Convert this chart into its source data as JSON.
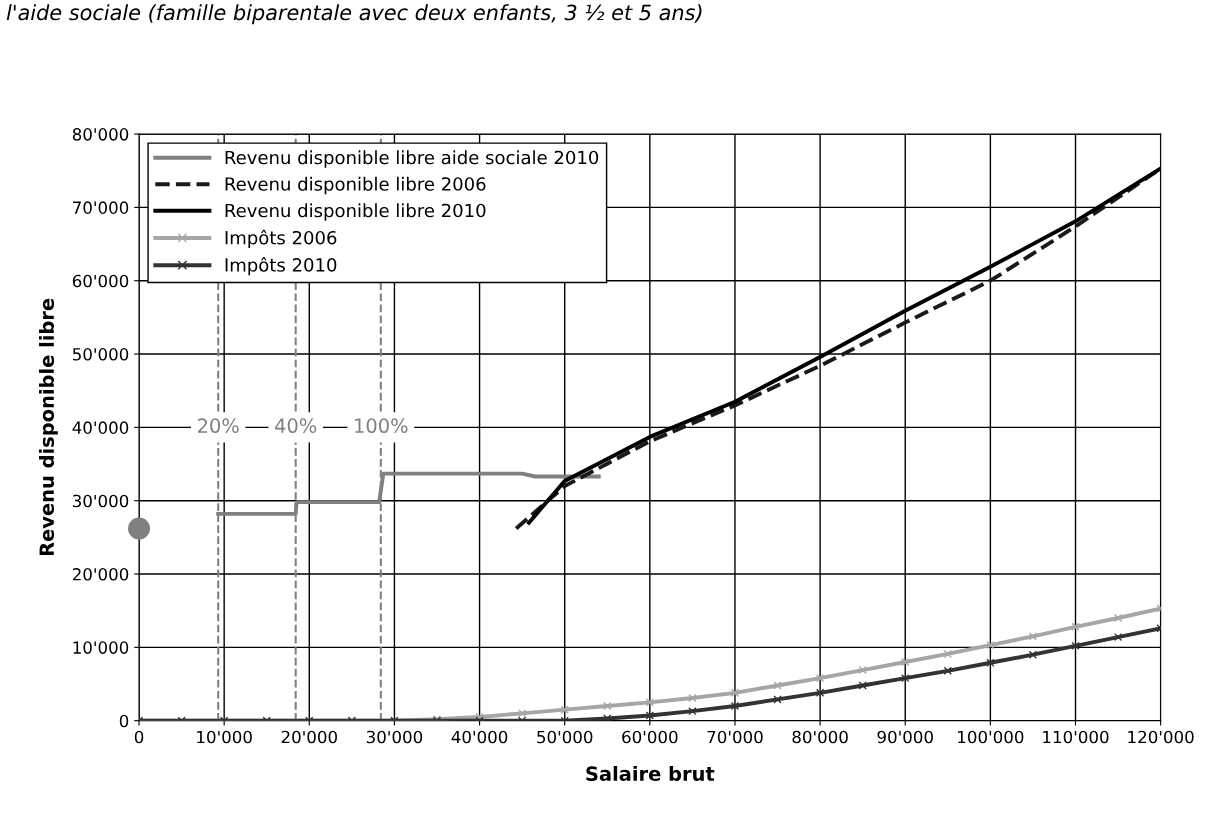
{
  "chart_data": {
    "type": "line",
    "title": "l'aide sociale (famille biparentale avec deux enfants, 3 ½ et 5 ans)",
    "xlabel": "Salaire brut",
    "ylabel": "Revenu disponible libre",
    "xlim": [
      0,
      120000
    ],
    "ylim": [
      0,
      80000
    ],
    "xticks": [
      {
        "value": 0,
        "label": "0"
      },
      {
        "value": 10000,
        "label": "10'000"
      },
      {
        "value": 20000,
        "label": "20'000"
      },
      {
        "value": 30000,
        "label": "30'000"
      },
      {
        "value": 40000,
        "label": "40'000"
      },
      {
        "value": 50000,
        "label": "50'000"
      },
      {
        "value": 60000,
        "label": "60'000"
      },
      {
        "value": 70000,
        "label": "70'000"
      },
      {
        "value": 80000,
        "label": "80'000"
      },
      {
        "value": 90000,
        "label": "90'000"
      },
      {
        "value": 100000,
        "label": "100'000"
      },
      {
        "value": 110000,
        "label": "110'000"
      },
      {
        "value": 120000,
        "label": "120'000"
      }
    ],
    "yticks": [
      {
        "value": 0,
        "label": "0"
      },
      {
        "value": 10000,
        "label": "10'000"
      },
      {
        "value": 20000,
        "label": "20'000"
      },
      {
        "value": 30000,
        "label": "30'000"
      },
      {
        "value": 40000,
        "label": "40'000"
      },
      {
        "value": 50000,
        "label": "50'000"
      },
      {
        "value": 60000,
        "label": "60'000"
      },
      {
        "value": 70000,
        "label": "70'000"
      },
      {
        "value": 80000,
        "label": "80'000"
      }
    ],
    "grid": true,
    "legend": "top left",
    "series": [
      {
        "name": "Revenu disponible libre aide sociale 2010",
        "color": "#808080",
        "marker": "none",
        "line_style": "solid",
        "x": [
          9300,
          18400,
          18500,
          28200,
          28700,
          45000,
          46500,
          54000
        ],
        "values": [
          28200,
          28200,
          29800,
          29800,
          33700,
          33700,
          33300,
          33300
        ]
      },
      {
        "name": "Revenu disponible libre 2006",
        "color": "#1a1a1a",
        "marker": "none",
        "line_style": "dashed",
        "x": [
          44300,
          50000,
          60000,
          70000,
          80000,
          90000,
          100000,
          110000,
          120000
        ],
        "values": [
          26200,
          32000,
          38100,
          43000,
          48400,
          54300,
          60000,
          67400,
          75300
        ]
      },
      {
        "name": "Revenu disponible libre 2010",
        "color": "#000000",
        "marker": "none",
        "line_style": "solid",
        "x": [
          45800,
          50000,
          60000,
          70000,
          80000,
          90000,
          100000,
          110000,
          120000
        ],
        "values": [
          27000,
          32700,
          38700,
          43500,
          49600,
          55900,
          61900,
          68100,
          75300
        ]
      },
      {
        "name": "Impôts 2006",
        "color": "#a6a6a6",
        "marker": "cross",
        "line_style": "solid",
        "x": [
          0,
          5000,
          10000,
          15000,
          20000,
          25000,
          30000,
          35000,
          40000,
          45000,
          50000,
          55000,
          60000,
          65000,
          70000,
          75000,
          80000,
          85000,
          90000,
          95000,
          100000,
          105000,
          110000,
          115000,
          120000
        ],
        "values": [
          0,
          0,
          0,
          0,
          0,
          0,
          0,
          200,
          500,
          1000,
          1500,
          2000,
          2500,
          3100,
          3800,
          4800,
          5800,
          6900,
          8000,
          9100,
          10300,
          11500,
          12800,
          14000,
          15300
        ]
      },
      {
        "name": "Impôts 2010",
        "color": "#333333",
        "marker": "cross",
        "line_style": "solid",
        "x": [
          0,
          5000,
          10000,
          15000,
          20000,
          25000,
          30000,
          35000,
          40000,
          45000,
          50000,
          55000,
          60000,
          65000,
          70000,
          75000,
          80000,
          85000,
          90000,
          95000,
          100000,
          105000,
          110000,
          115000,
          120000
        ],
        "values": [
          0,
          0,
          0,
          0,
          0,
          0,
          0,
          0,
          0,
          0,
          0,
          300,
          700,
          1300,
          2000,
          2900,
          3800,
          4800,
          5800,
          6800,
          7900,
          9000,
          10200,
          11400,
          12600
        ]
      },
      {
        "type": "scatter",
        "color": "#808080",
        "marker": "circle",
        "x": [
          0
        ],
        "values": [
          26200
        ]
      }
    ],
    "ref_lines": [
      {
        "axis": "x",
        "value": 9300,
        "color": "#808080",
        "line_style": "dashed"
      },
      {
        "axis": "x",
        "value": 18400,
        "color": "#808080",
        "line_style": "dashed"
      },
      {
        "axis": "x",
        "value": 28400,
        "color": "#808080",
        "line_style": "dashed"
      }
    ],
    "annotations": [
      {
        "text": "20%",
        "x": 9300,
        "y": 40000
      },
      {
        "text": "40%",
        "x": 18400,
        "y": 40000
      },
      {
        "text": "100%",
        "x": 28400,
        "y": 40000
      }
    ]
  }
}
